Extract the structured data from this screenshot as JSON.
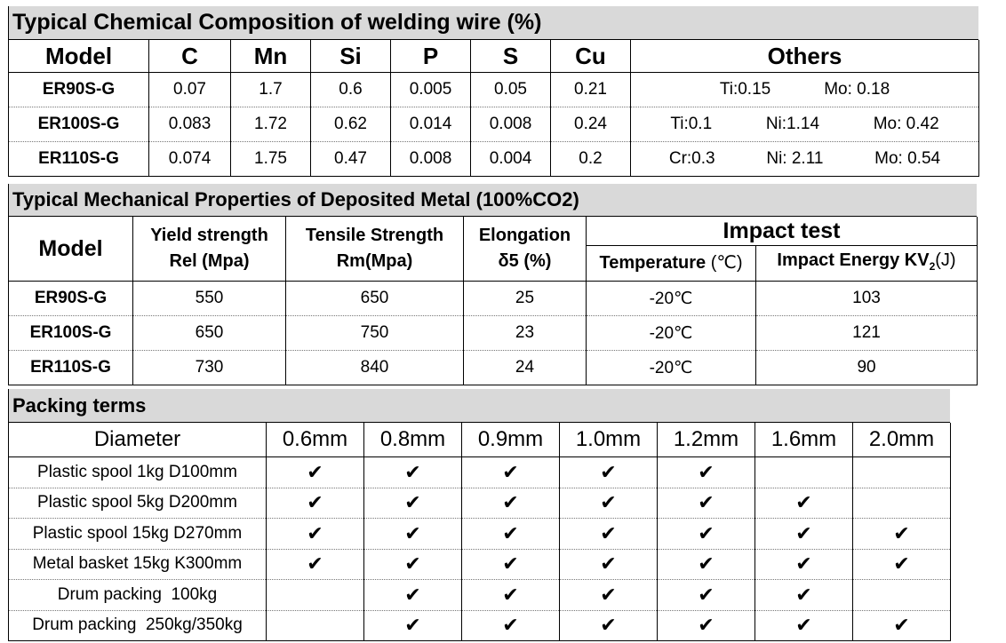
{
  "composition": {
    "title": "Typical Chemical Composition of welding wire (%)",
    "headers": [
      "Model",
      "C",
      "Mn",
      "Si",
      "P",
      "S",
      "Cu",
      "Others"
    ],
    "rows": [
      {
        "model": "ER90S-G",
        "c": "0.07",
        "mn": "1.7",
        "si": "0.6",
        "p": "0.005",
        "s": "0.05",
        "cu": "0.21",
        "others": [
          "Ti:0.15",
          "Mo: 0.18"
        ]
      },
      {
        "model": "ER100S-G",
        "c": "0.083",
        "mn": "1.72",
        "si": "0.62",
        "p": "0.014",
        "s": "0.008",
        "cu": "0.24",
        "others": [
          "Ti:0.1",
          "Ni:1.14",
          "Mo: 0.42"
        ]
      },
      {
        "model": "ER110S-G",
        "c": "0.074",
        "mn": "1.75",
        "si": "0.47",
        "p": "0.008",
        "s": "0.004",
        "cu": "0.2",
        "others": [
          "Cr:0.3",
          "Ni: 2.11",
          "Mo: 0.54"
        ]
      }
    ]
  },
  "mechanical": {
    "title": "Typical Mechanical Properties of Deposited Metal (100%CO2)",
    "headers": {
      "model": "Model",
      "yield_1": "Yield strength",
      "yield_2": "Rel (Mpa)",
      "tensile_1": "Tensile Strength",
      "tensile_2": "Rm(Mpa)",
      "elong_1": "Elongation",
      "elong_2": "δ5 (%)",
      "impact": "Impact test",
      "temperature": "Temperature",
      "temperature_unit": "(℃)",
      "energy": "Impact Energy KV",
      "energy_sub": "2",
      "energy_unit": "(J)"
    },
    "rows": [
      {
        "model": "ER90S-G",
        "yield": "550",
        "tensile": "650",
        "elong": "25",
        "temp": "-20℃",
        "energy": "103"
      },
      {
        "model": "ER100S-G",
        "yield": "650",
        "tensile": "750",
        "elong": "23",
        "temp": "-20℃",
        "energy": "121"
      },
      {
        "model": "ER110S-G",
        "yield": "730",
        "tensile": "840",
        "elong": "24",
        "temp": "-20℃",
        "energy": "90"
      }
    ]
  },
  "packing": {
    "title": "Packing terms",
    "diameter_label": "Diameter",
    "diameters": [
      "0.6mm",
      "0.8mm",
      "0.9mm",
      "1.0mm",
      "1.2mm",
      "1.6mm",
      "2.0mm"
    ],
    "check_mark": "✔",
    "rows": [
      {
        "label": "Plastic spool 1kg D100mm",
        "checks": [
          true,
          true,
          true,
          true,
          true,
          false,
          false
        ]
      },
      {
        "label": "Plastic spool 5kg D200mm",
        "checks": [
          true,
          true,
          true,
          true,
          true,
          true,
          false
        ]
      },
      {
        "label": "Plastic spool 15kg D270mm",
        "checks": [
          true,
          true,
          true,
          true,
          true,
          true,
          true
        ]
      },
      {
        "label": "Metal basket 15kg K300mm",
        "checks": [
          true,
          true,
          true,
          true,
          true,
          true,
          true
        ]
      },
      {
        "label": "Drum packing  100kg",
        "checks": [
          false,
          true,
          true,
          true,
          true,
          true,
          false
        ]
      },
      {
        "label": "Drum packing  250kg/350kg",
        "checks": [
          false,
          true,
          true,
          true,
          true,
          true,
          true
        ]
      }
    ]
  }
}
